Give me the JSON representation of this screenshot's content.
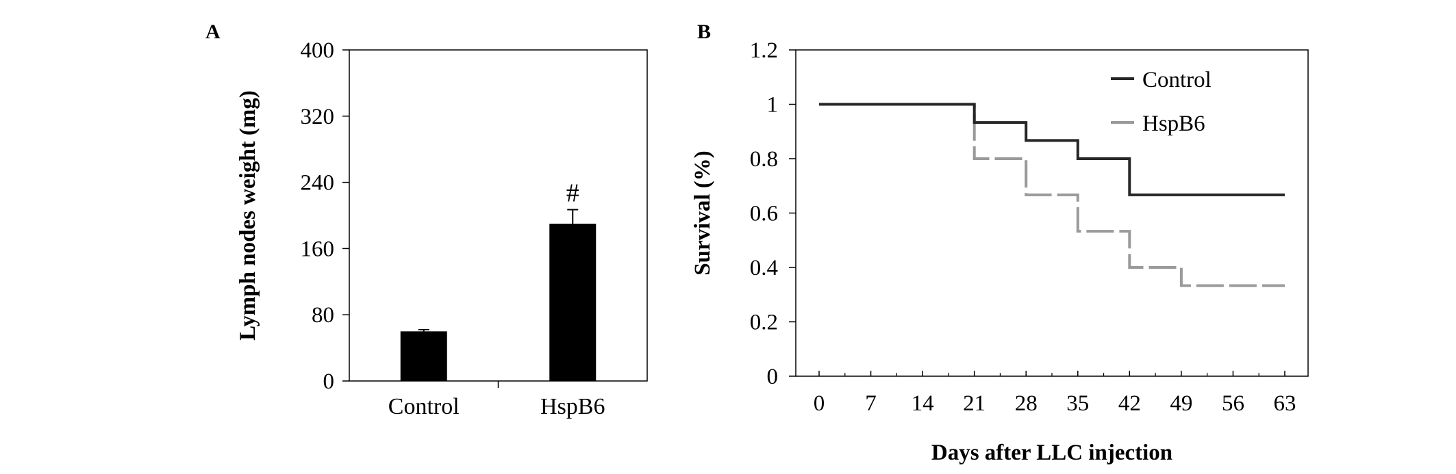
{
  "chart_data": [
    {
      "panel": "A",
      "type": "bar",
      "categories": [
        "Control",
        "HspB6"
      ],
      "values": [
        60,
        190
      ],
      "error": [
        2,
        17
      ],
      "annotations": [
        "",
        "#"
      ],
      "title": "",
      "xlabel": "",
      "ylabel": "Lymph nodes weight (mg)",
      "ylim": [
        0,
        400
      ],
      "yticks": [
        "0",
        "80",
        "160",
        "240",
        "320",
        "400"
      ],
      "bar_color": "#000000",
      "grid": false
    },
    {
      "panel": "B",
      "type": "line",
      "subtype": "step",
      "title": "",
      "xlabel": "Days after LLC injection",
      "ylabel": "Survival (%)",
      "xlim": [
        0,
        63
      ],
      "ylim": [
        0,
        1.2
      ],
      "xticks": [
        "0",
        "7",
        "14",
        "21",
        "28",
        "35",
        "42",
        "49",
        "56",
        "63"
      ],
      "yticks": [
        "0",
        "0.2",
        "0.4",
        "0.6",
        "0.8",
        "1",
        "1.2"
      ],
      "legend_position": "top-right",
      "grid": false,
      "series": [
        {
          "name": "Control",
          "color": "#262626",
          "style": "solid",
          "points": [
            [
              0,
              1.0
            ],
            [
              21,
              1.0
            ],
            [
              21,
              0.933
            ],
            [
              28,
              0.933
            ],
            [
              28,
              0.867
            ],
            [
              35,
              0.867
            ],
            [
              35,
              0.8
            ],
            [
              42,
              0.8
            ],
            [
              42,
              0.667
            ],
            [
              63,
              0.667
            ]
          ]
        },
        {
          "name": "HspB6",
          "color": "#9a9a9a",
          "style": "dashed",
          "points": [
            [
              0,
              1.0
            ],
            [
              21,
              1.0
            ],
            [
              21,
              0.8
            ],
            [
              28,
              0.8
            ],
            [
              28,
              0.667
            ],
            [
              35,
              0.667
            ],
            [
              35,
              0.533
            ],
            [
              42,
              0.533
            ],
            [
              42,
              0.4
            ],
            [
              49,
              0.4
            ],
            [
              49,
              0.333
            ],
            [
              63,
              0.333
            ]
          ]
        }
      ]
    }
  ]
}
